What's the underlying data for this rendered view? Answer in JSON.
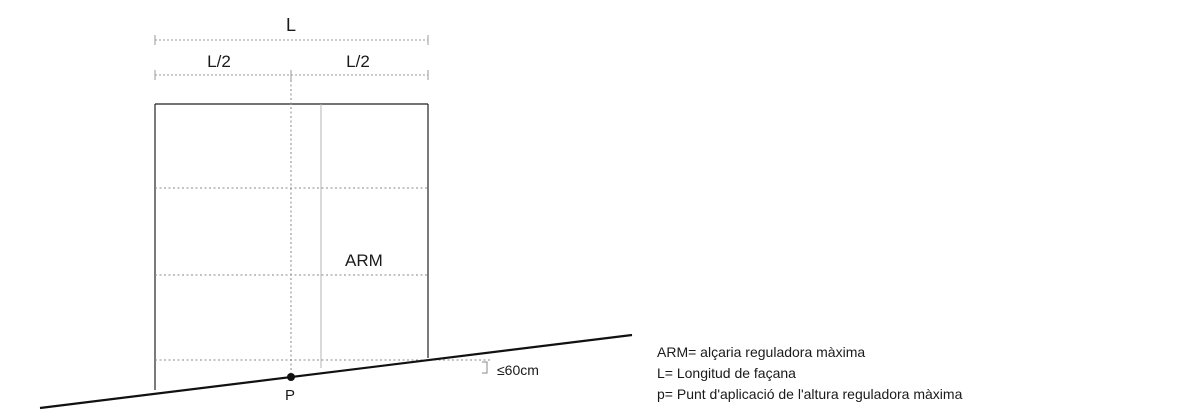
{
  "labels": {
    "length_total": "L",
    "length_half_left": "L/2",
    "length_half_right": "L/2",
    "arm": "ARM",
    "tolerance": "≤60cm",
    "point": "P"
  },
  "legend": {
    "items": [
      "ARM= alçaria reguladora màxima",
      "L= Longitud de façana",
      "p= Punt d'aplicació de l'altura reguladora màxima"
    ]
  }
}
